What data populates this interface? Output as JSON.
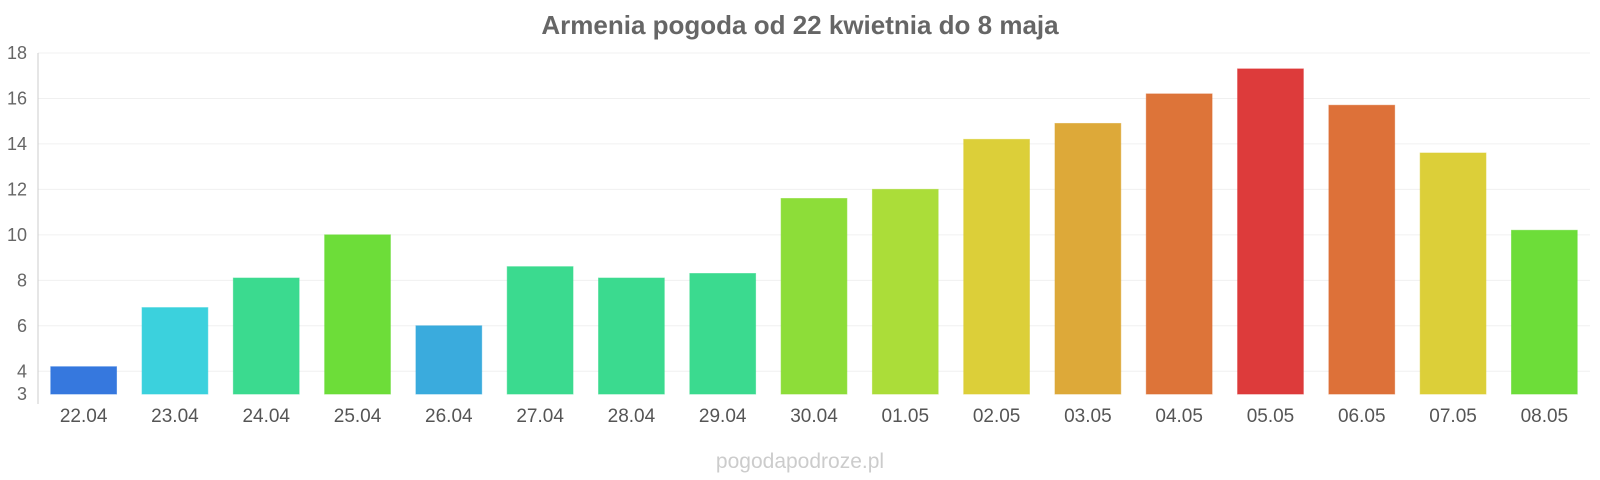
{
  "chart_data": {
    "type": "bar",
    "title": "Armenia pogoda od 22 kwietnia do 8 maja",
    "categories": [
      "22.04",
      "23.04",
      "24.04",
      "25.04",
      "26.04",
      "27.04",
      "28.04",
      "29.04",
      "30.04",
      "01.05",
      "02.05",
      "03.05",
      "04.05",
      "05.05",
      "06.05",
      "07.05",
      "08.05"
    ],
    "values": [
      4.2,
      6.8,
      8.1,
      10.0,
      6.0,
      8.6,
      8.1,
      8.3,
      11.6,
      12.0,
      14.2,
      14.9,
      16.2,
      17.3,
      15.7,
      13.6,
      10.2
    ],
    "colors": [
      "#2f74dd",
      "#35d0dc",
      "#35d98b",
      "#68dc33",
      "#34a8dc",
      "#35d98b",
      "#35d98b",
      "#35d98b",
      "#89dc33",
      "#a8dc33",
      "#dbcd33",
      "#dca633",
      "#dc7033",
      "#dc3535",
      "#dc6c33",
      "#dbcd33",
      "#68dc33"
    ],
    "ylim": [
      3,
      18
    ],
    "yticks": [
      3,
      4,
      6,
      8,
      10,
      12,
      14,
      16,
      18
    ],
    "grid": true,
    "legend": "none"
  },
  "watermark": "pogodapodroze.pl"
}
